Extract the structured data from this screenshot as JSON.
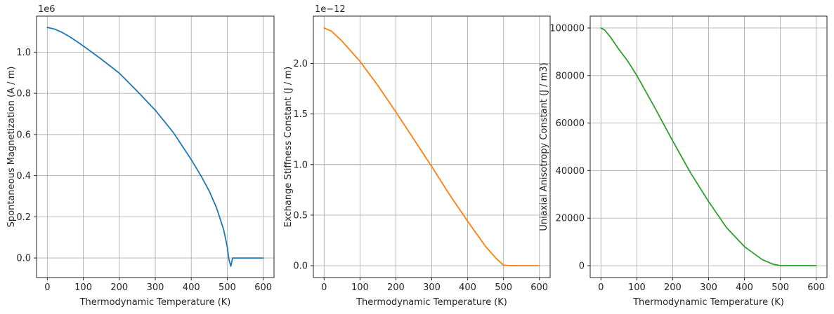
{
  "chart_data": [
    {
      "type": "line",
      "title": "",
      "xlabel": "Thermodynamic Temperature (K)",
      "ylabel": "Spontaneous Magnetization (A / m)",
      "offset_text": "1e6",
      "xlim": [
        -30,
        630
      ],
      "ylim": [
        -0.095,
        1.175
      ],
      "x_ticks": [
        0,
        100,
        200,
        300,
        400,
        500,
        600
      ],
      "x_tick_labels": [
        "0",
        "100",
        "200",
        "300",
        "400",
        "500",
        "600"
      ],
      "y_ticks": [
        0.0,
        0.2,
        0.4,
        0.6,
        0.8,
        1.0
      ],
      "y_tick_labels": [
        "0.0",
        "0.2",
        "0.4",
        "0.6",
        "0.8",
        "1.0"
      ],
      "grid": true,
      "series": [
        {
          "color": "#1f77b4",
          "x": [
            0,
            20,
            40,
            60,
            80,
            100,
            150,
            200,
            250,
            300,
            350,
            400,
            430,
            450,
            470,
            490,
            500,
            505,
            510,
            515,
            520,
            550,
            600
          ],
          "y": [
            1.12,
            1.112,
            1.097,
            1.077,
            1.054,
            1.03,
            0.966,
            0.898,
            0.81,
            0.718,
            0.61,
            0.478,
            0.39,
            0.325,
            0.245,
            0.138,
            0.055,
            -0.01,
            -0.04,
            0.0,
            0.0,
            0.0,
            0.0
          ]
        }
      ]
    },
    {
      "type": "line",
      "title": "",
      "xlabel": "Thermodynamic Temperature (K)",
      "ylabel": "Exchange Stiffness Constant (J / m)",
      "offset_text": "1e−12",
      "xlim": [
        -30,
        630
      ],
      "ylim": [
        -0.1175,
        2.4675
      ],
      "x_ticks": [
        0,
        100,
        200,
        300,
        400,
        500,
        600
      ],
      "x_tick_labels": [
        "0",
        "100",
        "200",
        "300",
        "400",
        "500",
        "600"
      ],
      "y_ticks": [
        0.0,
        0.5,
        1.0,
        1.5,
        2.0
      ],
      "y_tick_labels": [
        "0.0",
        "0.5",
        "1.0",
        "1.5",
        "2.0"
      ],
      "grid": true,
      "series": [
        {
          "color": "#ff7f0e",
          "x": [
            0,
            20,
            50,
            100,
            150,
            200,
            250,
            300,
            350,
            400,
            450,
            480,
            500,
            520,
            550,
            600
          ],
          "y": [
            2.35,
            2.32,
            2.22,
            2.02,
            1.78,
            1.52,
            1.25,
            0.98,
            0.7,
            0.44,
            0.19,
            0.07,
            0.005,
            0.0,
            0.0,
            0.0
          ]
        }
      ]
    },
    {
      "type": "line",
      "title": "",
      "xlabel": "Thermodynamic Temperature (K)",
      "ylabel": "Uniaxial Anisotropy Constant (J / m3)",
      "offset_text": "",
      "xlim": [
        -30,
        630
      ],
      "ylim": [
        -5000,
        105000
      ],
      "x_ticks": [
        0,
        100,
        200,
        300,
        400,
        500,
        600
      ],
      "x_tick_labels": [
        "0",
        "100",
        "200",
        "300",
        "400",
        "500",
        "600"
      ],
      "y_ticks": [
        0,
        20000,
        40000,
        60000,
        80000,
        100000
      ],
      "y_tick_labels": [
        "0",
        "20000",
        "40000",
        "60000",
        "80000",
        "100000"
      ],
      "grid": true,
      "series": [
        {
          "color": "#2ca02c",
          "x": [
            0,
            10,
            25,
            50,
            75,
            100,
            150,
            200,
            250,
            300,
            350,
            400,
            450,
            480,
            500,
            520,
            550,
            600
          ],
          "y": [
            100000,
            99200,
            96500,
            91000,
            86000,
            80000,
            66500,
            52500,
            39000,
            27000,
            16000,
            8000,
            2500,
            600,
            0,
            0,
            0,
            0
          ]
        }
      ]
    }
  ]
}
